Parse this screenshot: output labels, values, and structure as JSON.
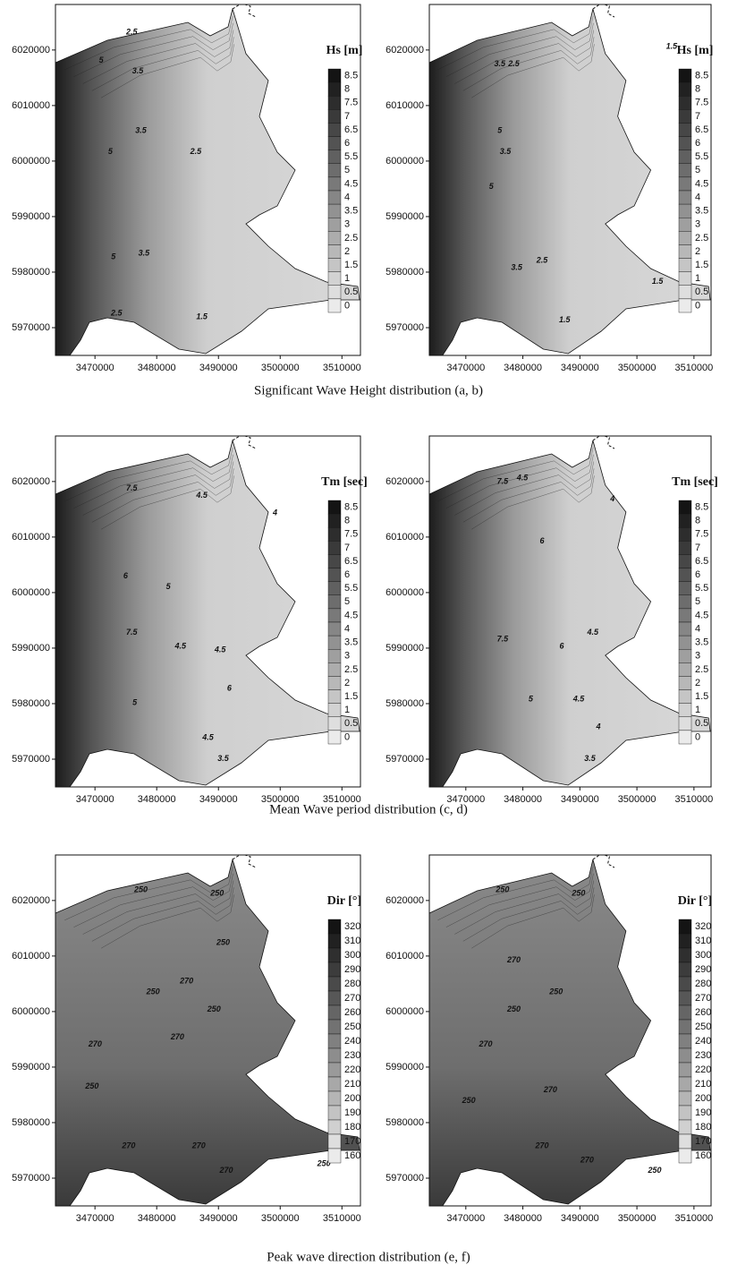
{
  "axes": {
    "xlim": [
      3463600,
      3513000
    ],
    "ylim": [
      5965000,
      6028200
    ],
    "xticks": [
      3470000,
      3480000,
      3490000,
      3500000,
      3510000
    ],
    "yticks": [
      5970000,
      5980000,
      5990000,
      6000000,
      6010000,
      6020000
    ]
  },
  "rows": [
    {
      "caption": "Significant Wave Height distribution (a, b)",
      "panels": [
        {
          "colorbar_title": "Hs [m]",
          "levels": [
            8.5,
            8,
            7.5,
            7,
            6.5,
            6,
            5.5,
            5,
            4.5,
            4,
            3.5,
            3,
            2.5,
            2,
            1.5,
            1,
            0.5,
            0
          ],
          "contour_labels": [
            "2.5",
            "5",
            "3.5",
            "3.5",
            "5",
            "2.5",
            "5",
            "3.5",
            "2.5",
            "1.5"
          ]
        },
        {
          "colorbar_title": "Hs [m]",
          "levels": [
            8.5,
            8,
            7.5,
            7,
            6.5,
            6,
            5.5,
            5,
            4.5,
            4,
            3.5,
            3,
            2.5,
            2,
            1.5,
            1,
            0.5,
            0
          ],
          "contour_labels": [
            "3.5",
            "2.5",
            "1.5",
            "5",
            "3.5",
            "5",
            "3.5",
            "2.5",
            "1.5",
            "1.5"
          ]
        }
      ]
    },
    {
      "caption": "Mean Wave period distribution (c, d)",
      "panels": [
        {
          "colorbar_title": "Tm [sec]",
          "levels": [
            8.5,
            8,
            7.5,
            7,
            6.5,
            6,
            5.5,
            5,
            4.5,
            4,
            3.5,
            3,
            2.5,
            2,
            1.5,
            1,
            0.5,
            0
          ],
          "contour_labels": [
            "7.5",
            "4.5",
            "4",
            "6",
            "5",
            "7.5",
            "4.5",
            "4.5",
            "6",
            "5",
            "4.5",
            "3.5"
          ]
        },
        {
          "colorbar_title": "Tm [sec]",
          "levels": [
            8.5,
            8,
            7.5,
            7,
            6.5,
            6,
            5.5,
            5,
            4.5,
            4,
            3.5,
            3,
            2.5,
            2,
            1.5,
            1,
            0.5,
            0
          ],
          "contour_labels": [
            "7.5",
            "4.5",
            "6",
            "4",
            "7.5",
            "4.5",
            "6",
            "5",
            "4.5",
            "4",
            "3.5"
          ]
        }
      ]
    },
    {
      "caption": "Peak wave direction distribution (e, f)",
      "panels": [
        {
          "colorbar_title": "Dir [°]",
          "levels": [
            320,
            310,
            300,
            290,
            280,
            270,
            260,
            250,
            240,
            230,
            220,
            210,
            200,
            190,
            180,
            170,
            160
          ],
          "contour_labels": [
            "250",
            "250",
            "270",
            "250",
            "250",
            "250",
            "270",
            "270",
            "250",
            "270",
            "270",
            "270",
            "250"
          ]
        },
        {
          "colorbar_title": "Dir [°]",
          "levels": [
            320,
            310,
            300,
            290,
            280,
            270,
            260,
            250,
            240,
            230,
            220,
            210,
            200,
            190,
            180,
            170,
            160
          ],
          "contour_labels": [
            "250",
            "250",
            "270",
            "250",
            "250",
            "270",
            "270",
            "250",
            "270",
            "270",
            "250"
          ]
        }
      ]
    }
  ]
}
